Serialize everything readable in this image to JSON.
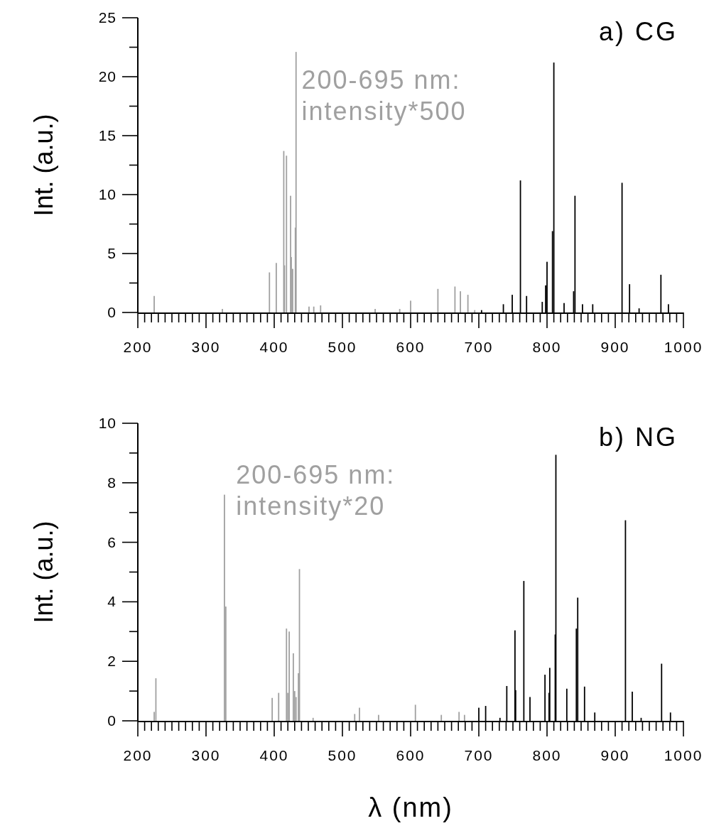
{
  "chart_data": [
    {
      "type": "bar",
      "title": "a) CG",
      "ylabel": "Int. (a.u.)",
      "annotations": [
        "200-695 nm:\nintensity*500"
      ],
      "xlim": [
        200,
        1000
      ],
      "ylim": [
        0,
        25
      ],
      "xticks": [
        200,
        {
          "value": 210,
          "label": null
        },
        {
          "value": 220,
          "label": null
        },
        {
          "value": 230,
          "label": null
        },
        {
          "value": 240,
          "label": null
        },
        {
          "value": 250,
          "label": null
        },
        {
          "value": 260,
          "label": null
        },
        {
          "value": 270,
          "label": null
        },
        {
          "value": 280,
          "label": null
        },
        {
          "value": 290,
          "label": null
        },
        300,
        {
          "value": 310,
          "label": null
        },
        {
          "value": 320,
          "label": null
        },
        {
          "value": 330,
          "label": null
        },
        {
          "value": 340,
          "label": null
        },
        {
          "value": 350,
          "label": null
        },
        {
          "value": 360,
          "label": null
        },
        {
          "value": 370,
          "label": null
        },
        {
          "value": 380,
          "label": null
        },
        {
          "value": 390,
          "label": null
        },
        400,
        {
          "value": 410,
          "label": null
        },
        {
          "value": 420,
          "label": null
        },
        {
          "value": 430,
          "label": null
        },
        {
          "value": 440,
          "label": null
        },
        {
          "value": 450,
          "label": null
        },
        {
          "value": 460,
          "label": null
        },
        {
          "value": 470,
          "label": null
        },
        {
          "value": 480,
          "label": null
        },
        {
          "value": 490,
          "label": null
        },
        500,
        {
          "value": 510,
          "label": null
        },
        {
          "value": 520,
          "label": null
        },
        {
          "value": 530,
          "label": null
        },
        {
          "value": 540,
          "label": null
        },
        {
          "value": 550,
          "label": null
        },
        {
          "value": 560,
          "label": null
        },
        {
          "value": 570,
          "label": null
        },
        {
          "value": 580,
          "label": null
        },
        {
          "value": 590,
          "label": null
        },
        600,
        {
          "value": 610,
          "label": null
        },
        {
          "value": 620,
          "label": null
        },
        {
          "value": 630,
          "label": null
        },
        {
          "value": 640,
          "label": null
        },
        {
          "value": 650,
          "label": null
        },
        {
          "value": 660,
          "label": null
        },
        {
          "value": 670,
          "label": null
        },
        {
          "value": 680,
          "label": null
        },
        {
          "value": 690,
          "label": null
        },
        700,
        {
          "value": 710,
          "label": null
        },
        {
          "value": 720,
          "label": null
        },
        {
          "value": 730,
          "label": null
        },
        {
          "value": 740,
          "label": null
        },
        {
          "value": 750,
          "label": null
        },
        {
          "value": 760,
          "label": null
        },
        {
          "value": 770,
          "label": null
        },
        {
          "value": 780,
          "label": null
        },
        {
          "value": 790,
          "label": null
        },
        800,
        {
          "value": 810,
          "label": null
        },
        {
          "value": 820,
          "label": null
        },
        {
          "value": 830,
          "label": null
        },
        {
          "value": 840,
          "label": null
        },
        {
          "value": 850,
          "label": null
        },
        {
          "value": 860,
          "label": null
        },
        {
          "value": 870,
          "label": null
        },
        {
          "value": 880,
          "label": null
        },
        {
          "value": 890,
          "label": null
        },
        900,
        {
          "value": 910,
          "label": null
        },
        {
          "value": 920,
          "label": null
        },
        {
          "value": 930,
          "label": null
        },
        {
          "value": 940,
          "label": null
        },
        {
          "value": 950,
          "label": null
        },
        {
          "value": 960,
          "label": null
        },
        {
          "value": 970,
          "label": null
        },
        {
          "value": 980,
          "label": null
        },
        {
          "value": 990,
          "label": null
        },
        1000
      ],
      "yticks": [
        0,
        {
          "value": 2.5,
          "label": null
        },
        5,
        {
          "value": 7.5,
          "label": null
        },
        10,
        {
          "value": 12.5,
          "label": null
        },
        15,
        {
          "value": 17.5,
          "label": null
        },
        20,
        {
          "value": 22.5,
          "label": null
        },
        25
      ],
      "series": [
        {
          "color": "#a0a0a0",
          "x": [
            224,
            324,
            393,
            403,
            414,
            415,
            418,
            424,
            425,
            427,
            431,
            432,
            451,
            458,
            468,
            548,
            584,
            600,
            640,
            665,
            673,
            684,
            694
          ],
          "values": [
            1.4,
            0.3,
            3.4,
            4.2,
            13.7,
            4.0,
            13.3,
            9.9,
            4.7,
            3.7,
            7.2,
            22.1,
            0.5,
            0.5,
            0.6,
            0.3,
            0.3,
            1.0,
            2.0,
            2.2,
            1.8,
            1.5,
            0.2
          ]
        },
        {
          "color": "#000000",
          "x": [
            704,
            736,
            749,
            761,
            770,
            793,
            798,
            800,
            808,
            810,
            825,
            839,
            841,
            852,
            867,
            910,
            921,
            935,
            967,
            978
          ],
          "values": [
            0.2,
            0.7,
            1.5,
            11.2,
            1.4,
            0.9,
            2.3,
            4.3,
            6.9,
            21.2,
            0.8,
            1.8,
            9.9,
            0.7,
            0.7,
            11.0,
            2.4,
            0.35,
            3.2,
            0.7
          ]
        }
      ]
    },
    {
      "type": "bar",
      "title": "b) NG",
      "ylabel": "Int. (a.u.)",
      "xlabel": "λ (nm)",
      "annotations": [
        "200-695 nm:\nintensity*20"
      ],
      "xlim": [
        200,
        1000
      ],
      "ylim": [
        0,
        10
      ],
      "xticks": [
        200,
        {
          "value": 210,
          "label": null
        },
        {
          "value": 220,
          "label": null
        },
        {
          "value": 230,
          "label": null
        },
        {
          "value": 240,
          "label": null
        },
        {
          "value": 250,
          "label": null
        },
        {
          "value": 260,
          "label": null
        },
        {
          "value": 270,
          "label": null
        },
        {
          "value": 280,
          "label": null
        },
        {
          "value": 290,
          "label": null
        },
        300,
        {
          "value": 310,
          "label": null
        },
        {
          "value": 320,
          "label": null
        },
        {
          "value": 330,
          "label": null
        },
        {
          "value": 340,
          "label": null
        },
        {
          "value": 350,
          "label": null
        },
        {
          "value": 360,
          "label": null
        },
        {
          "value": 370,
          "label": null
        },
        {
          "value": 380,
          "label": null
        },
        {
          "value": 390,
          "label": null
        },
        400,
        {
          "value": 410,
          "label": null
        },
        {
          "value": 420,
          "label": null
        },
        {
          "value": 430,
          "label": null
        },
        {
          "value": 440,
          "label": null
        },
        {
          "value": 450,
          "label": null
        },
        {
          "value": 460,
          "label": null
        },
        {
          "value": 470,
          "label": null
        },
        {
          "value": 480,
          "label": null
        },
        {
          "value": 490,
          "label": null
        },
        500,
        {
          "value": 510,
          "label": null
        },
        {
          "value": 520,
          "label": null
        },
        {
          "value": 530,
          "label": null
        },
        {
          "value": 540,
          "label": null
        },
        {
          "value": 550,
          "label": null
        },
        {
          "value": 560,
          "label": null
        },
        {
          "value": 570,
          "label": null
        },
        {
          "value": 580,
          "label": null
        },
        {
          "value": 590,
          "label": null
        },
        600,
        {
          "value": 610,
          "label": null
        },
        {
          "value": 620,
          "label": null
        },
        {
          "value": 630,
          "label": null
        },
        {
          "value": 640,
          "label": null
        },
        {
          "value": 650,
          "label": null
        },
        {
          "value": 660,
          "label": null
        },
        {
          "value": 670,
          "label": null
        },
        {
          "value": 680,
          "label": null
        },
        {
          "value": 690,
          "label": null
        },
        700,
        {
          "value": 710,
          "label": null
        },
        {
          "value": 720,
          "label": null
        },
        {
          "value": 730,
          "label": null
        },
        {
          "value": 740,
          "label": null
        },
        {
          "value": 750,
          "label": null
        },
        {
          "value": 760,
          "label": null
        },
        {
          "value": 770,
          "label": null
        },
        {
          "value": 780,
          "label": null
        },
        {
          "value": 790,
          "label": null
        },
        800,
        {
          "value": 810,
          "label": null
        },
        {
          "value": 820,
          "label": null
        },
        {
          "value": 830,
          "label": null
        },
        {
          "value": 840,
          "label": null
        },
        {
          "value": 850,
          "label": null
        },
        {
          "value": 860,
          "label": null
        },
        {
          "value": 870,
          "label": null
        },
        {
          "value": 880,
          "label": null
        },
        {
          "value": 890,
          "label": null
        },
        900,
        {
          "value": 910,
          "label": null
        },
        {
          "value": 920,
          "label": null
        },
        {
          "value": 930,
          "label": null
        },
        {
          "value": 940,
          "label": null
        },
        {
          "value": 950,
          "label": null
        },
        {
          "value": 960,
          "label": null
        },
        {
          "value": 970,
          "label": null
        },
        {
          "value": 980,
          "label": null
        },
        {
          "value": 990,
          "label": null
        },
        1000
      ],
      "yticks": [
        0,
        {
          "value": 1,
          "label": null
        },
        2,
        {
          "value": 3,
          "label": null
        },
        4,
        {
          "value": 5,
          "label": null
        },
        6,
        {
          "value": 7,
          "label": null
        },
        8,
        {
          "value": 9,
          "label": null
        },
        10
      ],
      "series": [
        {
          "color": "#a0a0a0",
          "x": [
            224,
            226.5,
            327,
            329,
            397,
            406.5,
            418,
            420,
            422,
            428,
            430,
            432,
            435.5,
            437,
            457,
            518,
            525,
            553,
            607,
            645,
            671,
            679
          ],
          "values": [
            0.3,
            1.43,
            7.6,
            3.84,
            0.77,
            0.94,
            3.1,
            0.94,
            3.0,
            2.27,
            1.0,
            0.8,
            1.6,
            5.1,
            0.1,
            0.23,
            0.44,
            0.2,
            0.54,
            0.2,
            0.3,
            0.2
          ]
        },
        {
          "color": "#000000",
          "x": [
            700,
            710,
            731,
            741,
            753,
            754,
            766,
            775,
            797,
            803,
            804,
            812,
            813,
            829,
            843,
            845,
            855,
            870,
            915,
            925,
            938,
            968,
            981
          ],
          "values": [
            0.44,
            0.5,
            0.1,
            1.17,
            3.04,
            1.03,
            4.7,
            0.8,
            1.55,
            0.94,
            1.78,
            2.9,
            8.94,
            1.08,
            3.1,
            4.14,
            1.15,
            0.28,
            6.74,
            0.98,
            0.1,
            1.92,
            0.28
          ]
        }
      ]
    }
  ]
}
